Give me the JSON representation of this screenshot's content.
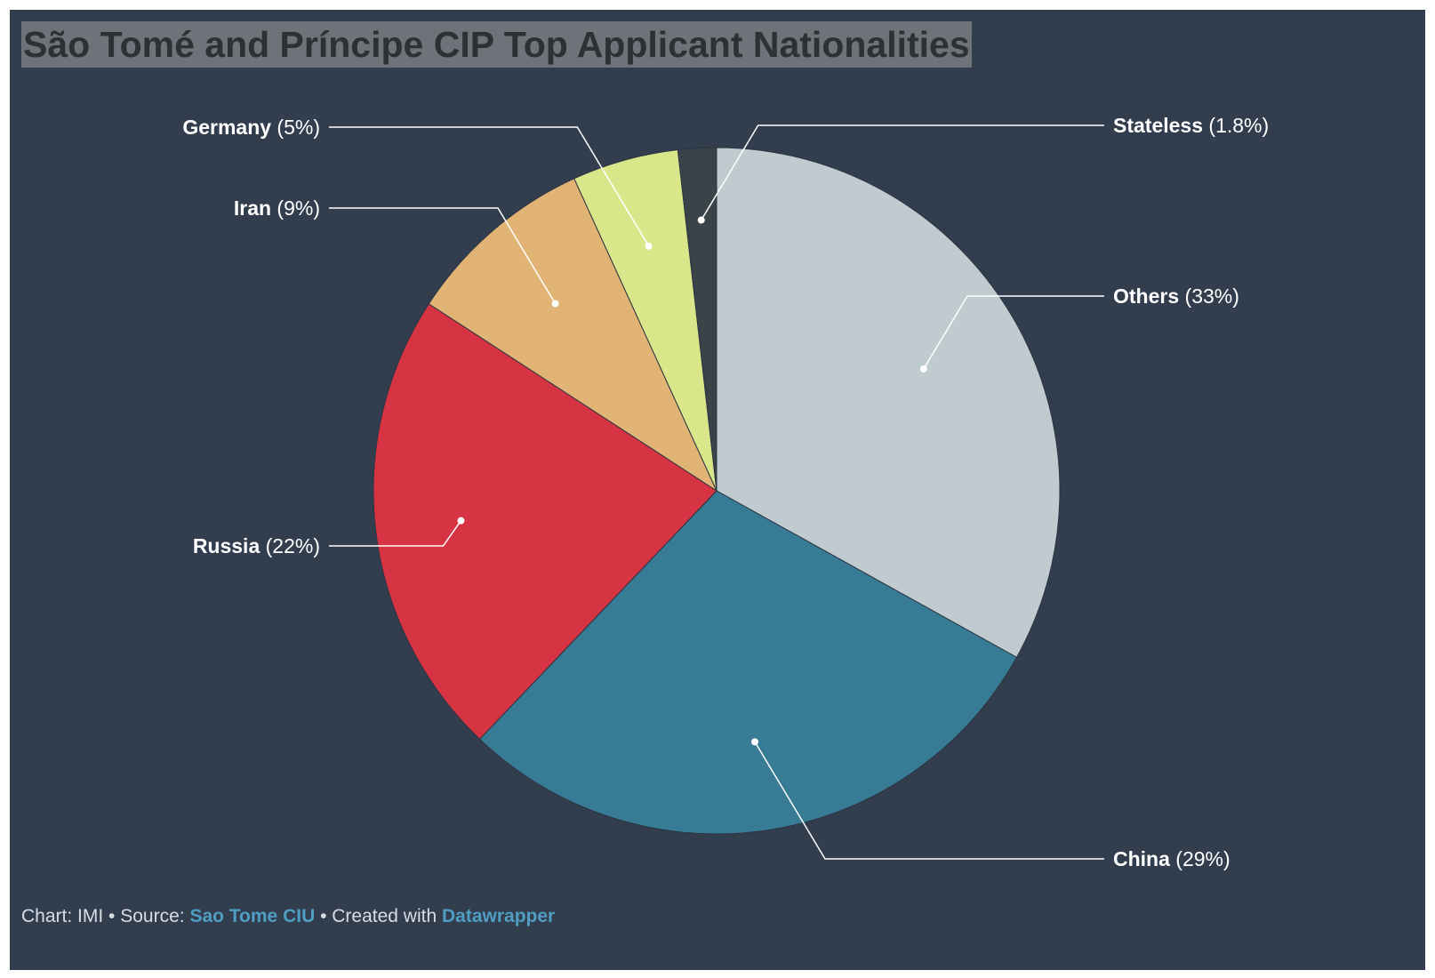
{
  "chart_data": {
    "type": "pie",
    "title": "São Tomé and Príncipe CIP Top Applicant Nationalities",
    "unit": "%",
    "slices": [
      {
        "label": "Others",
        "value": 33,
        "display": "(33%)",
        "color": "#bfcbcf"
      },
      {
        "label": "China",
        "value": 29,
        "display": "(29%)",
        "color": "#387b95"
      },
      {
        "label": "Russia",
        "value": 22,
        "display": "(22%)",
        "color": "#d63443"
      },
      {
        "label": "Iran",
        "value": 9,
        "display": "(9%)",
        "color": "#e1b374"
      },
      {
        "label": "Germany",
        "value": 5,
        "display": "(5%)",
        "color": "#d9e68a"
      },
      {
        "label": "Stateless",
        "value": 1.8,
        "display": "(1.8%)",
        "color": "#3a4347"
      }
    ]
  },
  "footer": {
    "chart_prefix": "Chart: IMI",
    "separator": " • ",
    "source_prefix": "Source: ",
    "source_link": "Sao Tome CIU",
    "created_prefix": "Created with ",
    "created_link": "Datawrapper"
  },
  "colors": {
    "background": "#323d4e",
    "title_highlight": "#6e7379",
    "title_text": "#2d3035",
    "label_text": "#ffffff",
    "leader_line": "#ffffff",
    "link": "#4f9ec4"
  }
}
